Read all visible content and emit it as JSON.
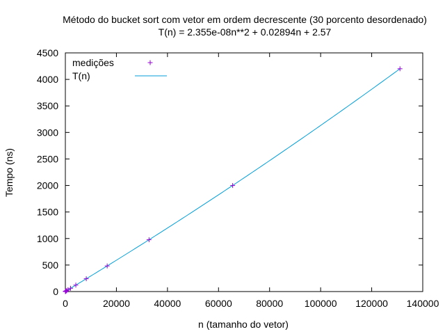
{
  "chart_data": {
    "type": "scatter",
    "title": "Método do bucket sort com vetor em ordem decrescente (30 porcento desordenado)",
    "subtitle": "T(n) = 2.355e-08n**2 + 0.02894n + 2.57",
    "xlabel": "n (tamanho do vetor)",
    "ylabel": "Tempo (ns)",
    "xlim": [
      0,
      140000
    ],
    "ylim": [
      0,
      4500
    ],
    "x_ticks": [
      0,
      20000,
      40000,
      60000,
      80000,
      100000,
      120000,
      140000
    ],
    "y_ticks": [
      0,
      500,
      1000,
      1500,
      2000,
      2500,
      3000,
      3500,
      4000,
      4500
    ],
    "x_tick_labels": [
      "0",
      "20000",
      "40000",
      "60000",
      "80000",
      "100000",
      "120000",
      "140000"
    ],
    "y_tick_labels": [
      "0",
      "500",
      "1000",
      "1500",
      "2000",
      "2500",
      "3000",
      "3500",
      "4000",
      "4500"
    ],
    "grid": false,
    "legend_position": "top-left",
    "series": [
      {
        "name": "medições",
        "kind": "points",
        "marker": "plus",
        "color": "#9400d3",
        "x": [
          2,
          4,
          8,
          16,
          32,
          64,
          128,
          256,
          512,
          1024,
          2048,
          4096,
          8192,
          16384,
          32768,
          65536,
          131072
        ],
        "y": [
          2.6,
          2.7,
          2.8,
          3.0,
          3.5,
          4.4,
          6.3,
          10.0,
          17.4,
          32.3,
          62.0,
          121.6,
          241.4,
          482.9,
          976.6,
          1999.5,
          4200.6
        ]
      },
      {
        "name": "T(n)",
        "kind": "fit-line",
        "color": "#009ed7",
        "coefficients": {
          "a": 2.355e-08,
          "b": 0.02894,
          "c": 2.57
        },
        "x_range": [
          0,
          131072
        ]
      }
    ]
  }
}
